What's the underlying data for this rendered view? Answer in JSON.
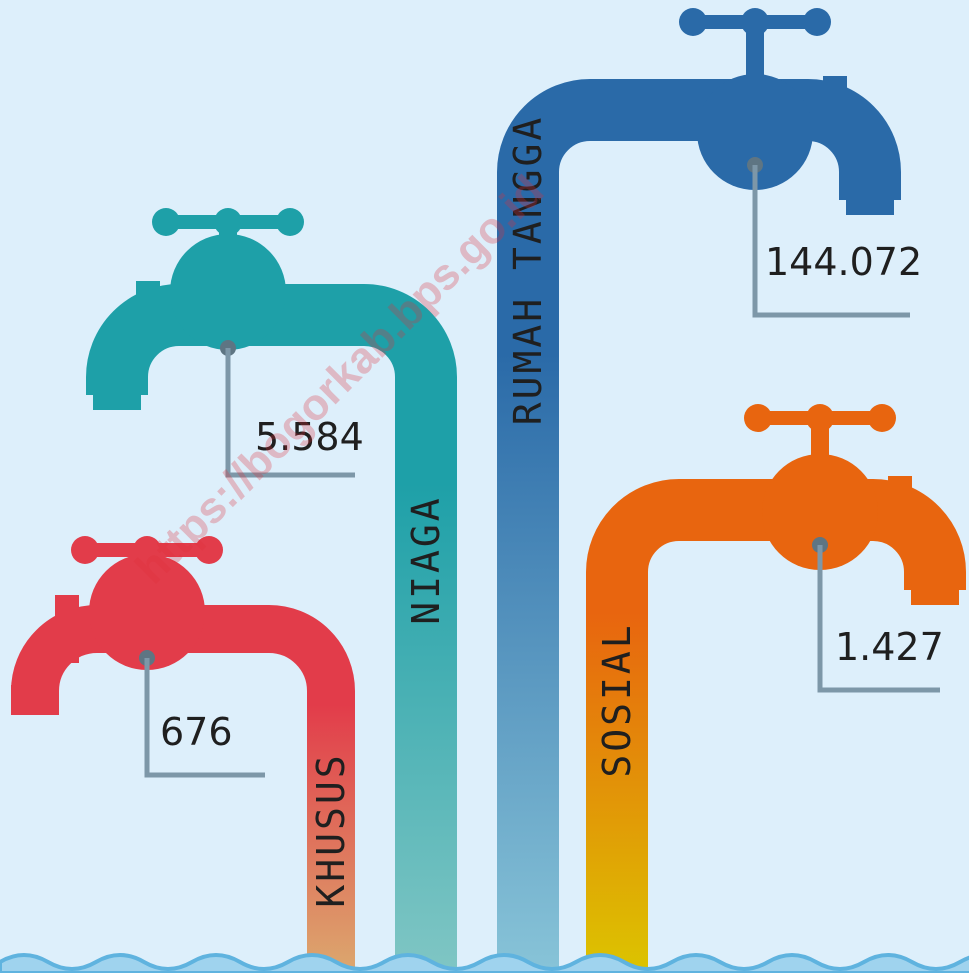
{
  "taps": [
    {
      "label": "KHUSUS",
      "value": "676"
    },
    {
      "label": "NIAGA",
      "value": "5.584"
    },
    {
      "label": "RUMAH TANGGA",
      "value": "144.072"
    },
    {
      "label": "SOSIAL",
      "value": "1.427"
    }
  ],
  "watermark": "https://bogorkab.bps.go.id"
}
